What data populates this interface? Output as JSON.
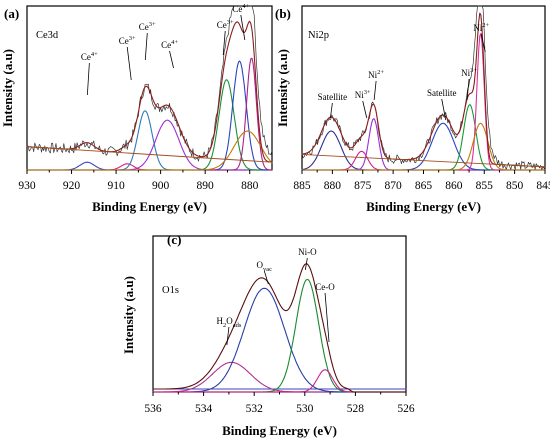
{
  "chart_data": [
    {
      "type": "line",
      "panel_label": "(a)",
      "element_label": "Ce3d",
      "xlabel": "Binding Energy (eV)",
      "ylabel": "Intensity (a.u)",
      "xlim": [
        930,
        875
      ],
      "x_ticks": [
        "930",
        "920",
        "910",
        "900",
        "890",
        "880"
      ],
      "peak_labels": [
        {
          "text": "Ce",
          "sup": "4+",
          "sub": "",
          "x": 916
        },
        {
          "text": "Ce",
          "sup": "3+",
          "sub": "",
          "x": 907.5
        },
        {
          "text": "Ce",
          "sup": "3+",
          "sub": "",
          "x": 903
        },
        {
          "text": "Ce",
          "sup": "4+",
          "sub": "",
          "x": 898
        },
        {
          "text": "Ce",
          "sup": "3+",
          "sub": "",
          "x": 885.5
        },
        {
          "text": "Ce",
          "sup": "4+",
          "sub": "",
          "x": 882
        }
      ],
      "series": [
        {
          "color": "#333333",
          "components": [],
          "baseline": [
            0.05,
            0.15
          ],
          "noise": 0.035,
          "envelope": true
        },
        {
          "color": "#3a4bbf",
          "components": [
            {
              "center": 916.5,
              "amp": 0.05,
              "sigma": 1.6
            }
          ]
        },
        {
          "color": "#e01a7c",
          "components": [
            {
              "center": 907.5,
              "amp": 0.04,
              "sigma": 1.4
            }
          ]
        },
        {
          "color": "#2f7ab8",
          "components": [
            {
              "center": 903.5,
              "amp": 0.38,
              "sigma": 1.6
            }
          ]
        },
        {
          "color": "#9b30d9",
          "components": [
            {
              "center": 898.5,
              "amp": 0.32,
              "sigma": 2.6
            }
          ]
        },
        {
          "color": "#1a8f3a",
          "components": [
            {
              "center": 885.2,
              "amp": 0.58,
              "sigma": 1.7
            }
          ]
        },
        {
          "color": "#2a45c0",
          "components": [
            {
              "center": 882.3,
              "amp": 0.7,
              "sigma": 1.5
            }
          ]
        },
        {
          "color": "#b0208a",
          "components": [
            {
              "center": 879.6,
              "amp": 0.72,
              "sigma": 1.1
            }
          ]
        },
        {
          "color": "#c07a10",
          "components": [
            {
              "center": 880.5,
              "amp": 0.25,
              "sigma": 3.0
            }
          ]
        },
        {
          "color": "#8b1d1d",
          "components": [
            {
              "center": 916.5,
              "amp": 0.05,
              "sigma": 1.6
            },
            {
              "center": 907.5,
              "amp": 0.04,
              "sigma": 1.4
            },
            {
              "center": 903.5,
              "amp": 0.38,
              "sigma": 1.6
            },
            {
              "center": 898.5,
              "amp": 0.32,
              "sigma": 2.6
            },
            {
              "center": 885.2,
              "amp": 0.58,
              "sigma": 1.7
            },
            {
              "center": 882.3,
              "amp": 0.7,
              "sigma": 1.5
            },
            {
              "center": 879.6,
              "amp": 0.72,
              "sigma": 1.1
            }
          ],
          "baseline": [
            0.05,
            0.15
          ]
        }
      ]
    },
    {
      "type": "line",
      "panel_label": "(b)",
      "element_label": "Ni2p",
      "xlabel": "Binding Energy (eV)",
      "ylabel": "Intensity (a.u)",
      "xlim": [
        885,
        845
      ],
      "x_ticks": [
        "885",
        "880",
        "875",
        "870",
        "865",
        "860",
        "855",
        "850",
        "845"
      ],
      "peak_labels": [
        {
          "text": "Satellite",
          "sup": "",
          "sub": "",
          "x": 880
        },
        {
          "text": "Ni",
          "sup": "3+",
          "sub": "",
          "x": 875
        },
        {
          "text": "Ni",
          "sup": "2+",
          "sub": "",
          "x": 872.8
        },
        {
          "text": "Satellite",
          "sup": "",
          "sub": "",
          "x": 862
        },
        {
          "text": "Ni",
          "sup": "3+",
          "sub": "",
          "x": 857.5
        },
        {
          "text": "Ni",
          "sup": "2+",
          "sub": "",
          "x": 855.5
        }
      ],
      "series": [
        {
          "color": "#333333",
          "components": [],
          "baseline": [
            0.02,
            0.1
          ],
          "noise": 0.03,
          "envelope": true
        },
        {
          "color": "#2a2f9a",
          "components": [
            {
              "center": 880.2,
              "amp": 0.25,
              "sigma": 1.6
            }
          ]
        },
        {
          "color": "#d01f8a",
          "components": [
            {
              "center": 875.2,
              "amp": 0.12,
              "sigma": 1.0
            }
          ]
        },
        {
          "color": "#9b30d9",
          "components": [
            {
              "center": 873.2,
              "amp": 0.33,
              "sigma": 0.8
            }
          ]
        },
        {
          "color": "#2a45c0",
          "components": [
            {
              "center": 861.8,
              "amp": 0.3,
              "sigma": 1.8
            }
          ]
        },
        {
          "color": "#1a9a3a",
          "components": [
            {
              "center": 857.4,
              "amp": 0.42,
              "sigma": 1.0
            }
          ]
        },
        {
          "color": "#e0309a",
          "components": [
            {
              "center": 855.6,
              "amp": 0.88,
              "sigma": 0.6
            }
          ]
        },
        {
          "color": "#c07a10",
          "components": [
            {
              "center": 855.6,
              "amp": 0.3,
              "sigma": 1.2
            }
          ]
        },
        {
          "color": "#8b1d1d",
          "components": [
            {
              "center": 880.2,
              "amp": 0.25,
              "sigma": 1.6
            },
            {
              "center": 875.2,
              "amp": 0.12,
              "sigma": 1.0
            },
            {
              "center": 873.2,
              "amp": 0.33,
              "sigma": 0.8
            },
            {
              "center": 861.8,
              "amp": 0.3,
              "sigma": 1.8
            },
            {
              "center": 857.4,
              "amp": 0.42,
              "sigma": 1.0
            },
            {
              "center": 855.6,
              "amp": 0.88,
              "sigma": 0.6
            }
          ],
          "baseline": [
            0.02,
            0.1
          ]
        }
      ]
    },
    {
      "type": "line",
      "panel_label": "(c)",
      "element_label": "O1s",
      "xlabel": "Binding Energy (eV)",
      "ylabel": "Intensity (a.u)",
      "xlim": [
        536,
        526
      ],
      "x_ticks": [
        "536",
        "534",
        "532",
        "530",
        "528",
        "526"
      ],
      "peak_labels": [
        {
          "text": "H",
          "sup": "",
          "sub": "2",
          "text2": "O",
          "sub2": "ads",
          "x": 533.0
        },
        {
          "text": "O",
          "sup": "",
          "sub": "vac",
          "x": 531.6
        },
        {
          "text": "Ni-O",
          "sup": "",
          "sub": "",
          "x": 529.9
        },
        {
          "text": "Ce-O",
          "sup": "",
          "sub": "",
          "x": 529.2
        }
      ],
      "series": [
        {
          "color": "#3a44b8",
          "components": [],
          "baseline": [
            0.02,
            0.02
          ],
          "flatline": true
        },
        {
          "color": "#b0308f",
          "components": [
            {
              "center": 532.9,
              "amp": 0.2,
              "sigma": 0.75
            }
          ]
        },
        {
          "color": "#2a3fa8",
          "components": [
            {
              "center": 531.6,
              "amp": 0.7,
              "sigma": 0.8
            }
          ]
        },
        {
          "color": "#1a8a2e",
          "components": [
            {
              "center": 529.9,
              "amp": 0.76,
              "sigma": 0.45
            }
          ]
        },
        {
          "color": "#d01f8a",
          "components": [
            {
              "center": 529.2,
              "amp": 0.15,
              "sigma": 0.3
            }
          ]
        },
        {
          "color": "#5a1010",
          "components": [
            {
              "center": 532.9,
              "amp": 0.2,
              "sigma": 0.75
            },
            {
              "center": 531.6,
              "amp": 0.7,
              "sigma": 0.8
            },
            {
              "center": 529.9,
              "amp": 0.76,
              "sigma": 0.45
            },
            {
              "center": 529.2,
              "amp": 0.15,
              "sigma": 0.3
            }
          ],
          "baseline": [
            0.02,
            0.02
          ],
          "tail": true
        }
      ]
    }
  ]
}
